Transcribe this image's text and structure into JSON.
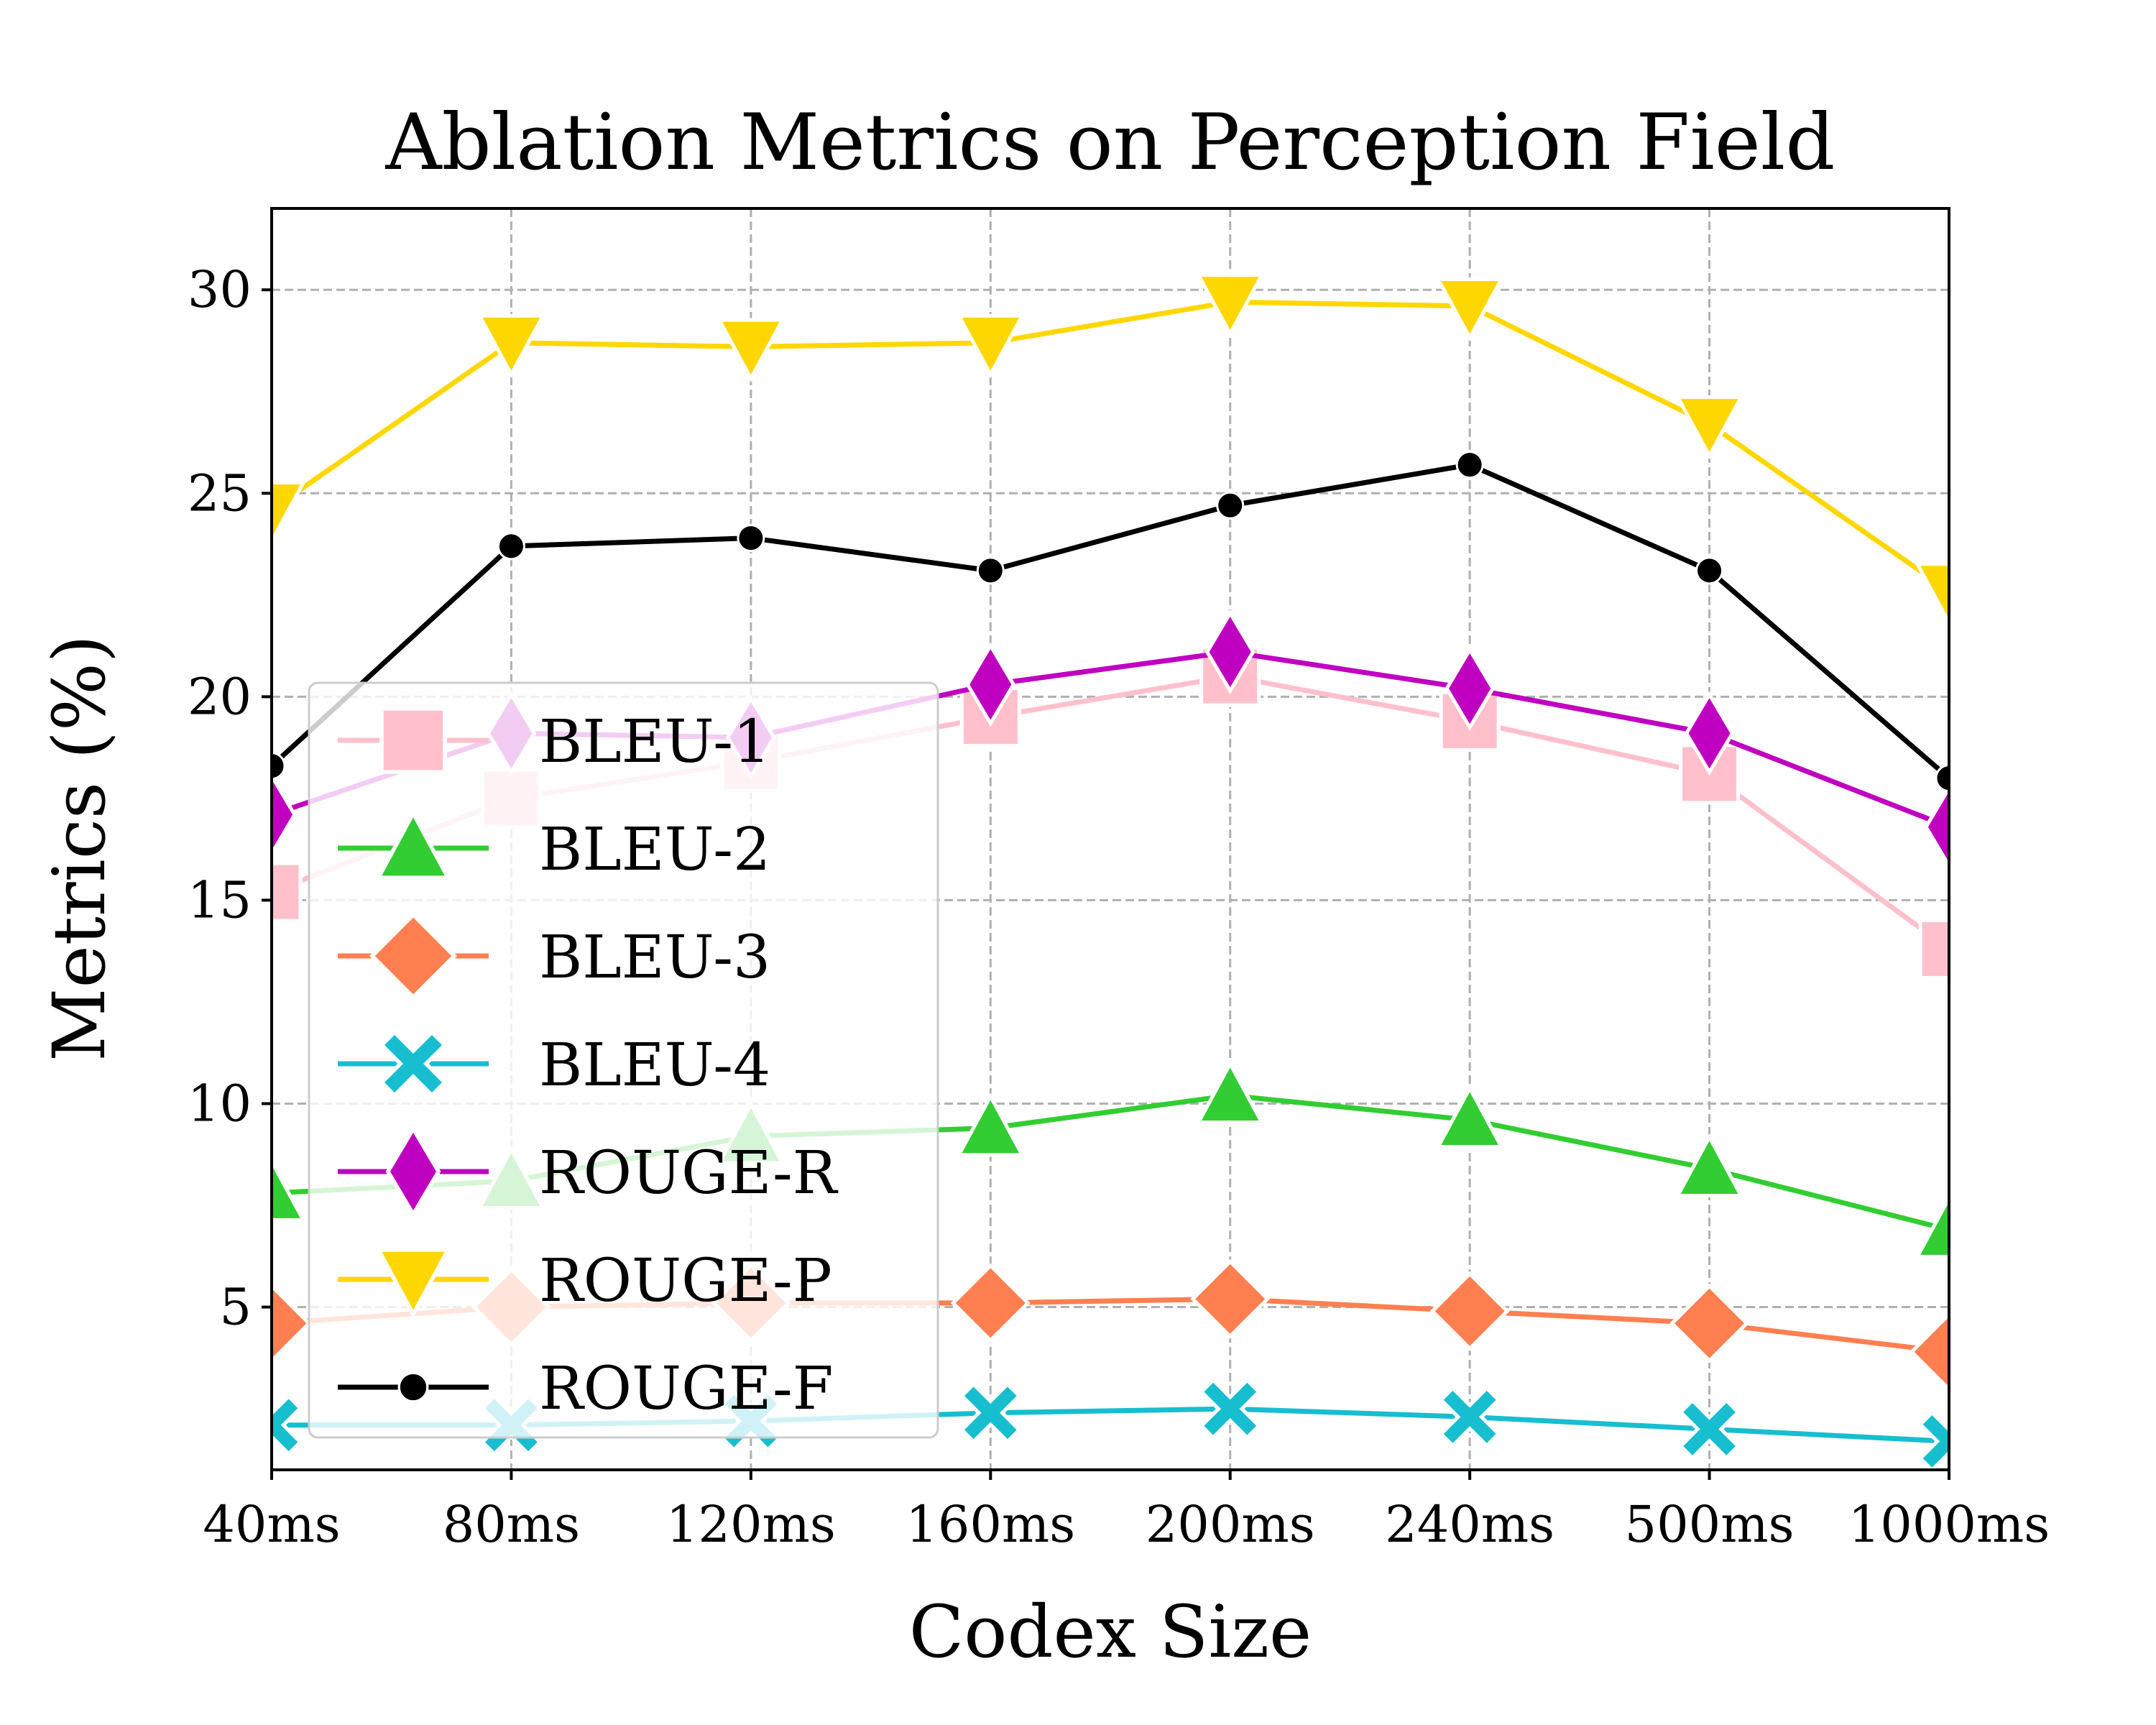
{
  "chart_data": {
    "type": "line",
    "title": "Ablation Metrics on Perception Field",
    "xlabel": "Codex Size",
    "ylabel": "Metrics (%)",
    "categories": [
      "40ms",
      "80ms",
      "120ms",
      "160ms",
      "200ms",
      "240ms",
      "500ms",
      "1000ms"
    ],
    "ylim": [
      1,
      32
    ],
    "yticks": [
      5,
      10,
      15,
      20,
      25,
      30
    ],
    "grid": true,
    "legend_position": "center-left",
    "series": [
      {
        "name": "BLEU-1",
        "color": "#ffc0cb",
        "marker": "square",
        "values": [
          15.2,
          17.5,
          18.4,
          19.5,
          20.5,
          19.4,
          18.1,
          13.8
        ]
      },
      {
        "name": "BLEU-2",
        "color": "#32cd32",
        "marker": "triangle-up",
        "values": [
          7.8,
          8.1,
          9.2,
          9.4,
          10.2,
          9.6,
          8.4,
          6.9
        ]
      },
      {
        "name": "BLEU-3",
        "color": "#ff7f50",
        "marker": "diamond",
        "values": [
          4.6,
          5.0,
          5.1,
          5.1,
          5.2,
          4.9,
          4.6,
          3.9
        ]
      },
      {
        "name": "BLEU-4",
        "color": "#17becf",
        "marker": "x",
        "values": [
          2.1,
          2.1,
          2.2,
          2.4,
          2.5,
          2.3,
          2.0,
          1.7
        ]
      },
      {
        "name": "ROUGE-R",
        "color": "#c000c0",
        "marker": "thin-diamond",
        "values": [
          17.1,
          19.1,
          19.0,
          20.3,
          21.1,
          20.2,
          19.1,
          16.8
        ]
      },
      {
        "name": "ROUGE-P",
        "color": "#ffd700",
        "marker": "triangle-down",
        "values": [
          24.6,
          28.7,
          28.6,
          28.7,
          29.7,
          29.6,
          26.7,
          22.6
        ]
      },
      {
        "name": "ROUGE-F",
        "color": "#000000",
        "marker": "circle",
        "values": [
          18.3,
          23.7,
          23.9,
          23.1,
          24.7,
          25.7,
          23.1,
          18.0
        ]
      }
    ]
  }
}
